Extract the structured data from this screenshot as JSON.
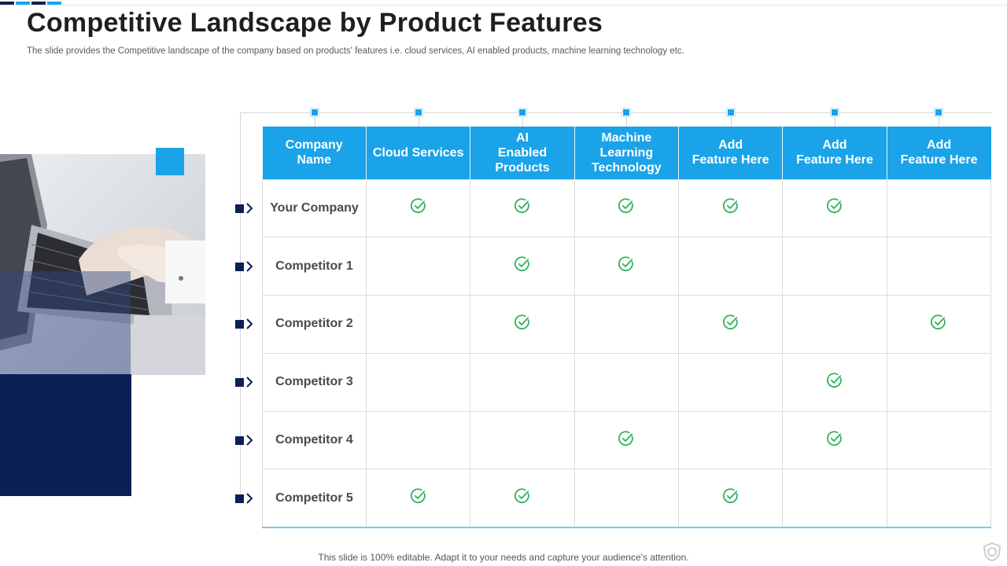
{
  "colors": {
    "accent": "#1aa3e8",
    "navy": "#0c1f56",
    "check": "#2db35a"
  },
  "slide": {
    "title": "Competitive Landscape by Product Features",
    "subtitle": "The slide provides the Competitive landscape of the company based on products' features i.e. cloud services, AI enabled products, machine learning technology etc.",
    "footer": "This slide is 100% editable. Adapt it to your needs and capture your audience's attention."
  },
  "table": {
    "headers": [
      "Company\nName",
      "Cloud Services",
      "AI\nEnabled\nProducts",
      "Machine\nLearning\nTechnology",
      "Add\nFeature Here",
      "Add\nFeature Here",
      "Add\nFeature Here"
    ],
    "rows": [
      {
        "name": "Your Company",
        "checks": [
          true,
          true,
          true,
          true,
          true,
          false
        ]
      },
      {
        "name": "Competitor 1",
        "checks": [
          false,
          true,
          true,
          false,
          false,
          false
        ]
      },
      {
        "name": "Competitor 2",
        "checks": [
          false,
          true,
          false,
          true,
          false,
          true
        ]
      },
      {
        "name": "Competitor 3",
        "checks": [
          false,
          false,
          false,
          false,
          true,
          false
        ]
      },
      {
        "name": "Competitor 4",
        "checks": [
          false,
          false,
          true,
          false,
          true,
          false
        ]
      },
      {
        "name": "Competitor 5",
        "checks": [
          true,
          true,
          false,
          true,
          false,
          false
        ]
      }
    ]
  },
  "icons": {
    "check": "check-circle-icon",
    "marker": "chevron-right-icon",
    "logo": "shield-icon"
  }
}
